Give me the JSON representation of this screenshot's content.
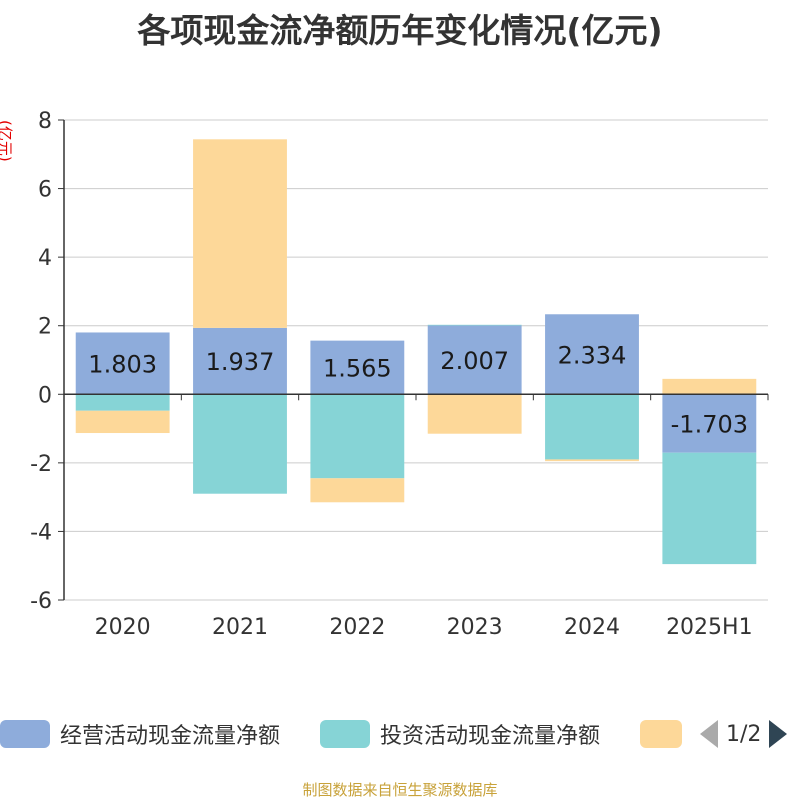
{
  "title": "各项现金流净额历年变化情况(亿元)",
  "unit_label": "(亿元)",
  "source": "制图数据来自恒生聚源数据库",
  "legend": {
    "items": [
      {
        "label": "经营活动现金流量净额",
        "color": "#8eacdb"
      },
      {
        "label": "投资活动现金流量净额",
        "color": "#86d4d6"
      },
      {
        "label": "",
        "color": "#fdd899"
      }
    ],
    "page": "1/2"
  },
  "chart_data": {
    "type": "bar",
    "stacked": true,
    "categories": [
      "2020",
      "2021",
      "2022",
      "2023",
      "2024",
      "2025H1"
    ],
    "ylim": [
      -6,
      8
    ],
    "yticks": [
      8,
      6,
      4,
      2,
      0,
      -2,
      -4,
      -6
    ],
    "grid": true,
    "legend_position": "bottom",
    "series": [
      {
        "name": "经营活动现金流量净额",
        "color": "#8eacdb",
        "values": [
          1.803,
          1.937,
          1.565,
          2.007,
          2.334,
          -1.703
        ],
        "labels": [
          "1.803",
          "1.937",
          "1.565",
          "2.007",
          "2.334",
          "-1.703"
        ]
      },
      {
        "name": "投资活动现金流量净额",
        "color": "#86d4d6",
        "values": [
          -0.48,
          -2.9,
          -2.45,
          0.02,
          -1.9,
          -3.25
        ]
      },
      {
        "color": "#fdd899",
        "values": [
          -0.65,
          5.5,
          -0.7,
          -1.15,
          -0.05,
          0.45
        ]
      }
    ]
  }
}
